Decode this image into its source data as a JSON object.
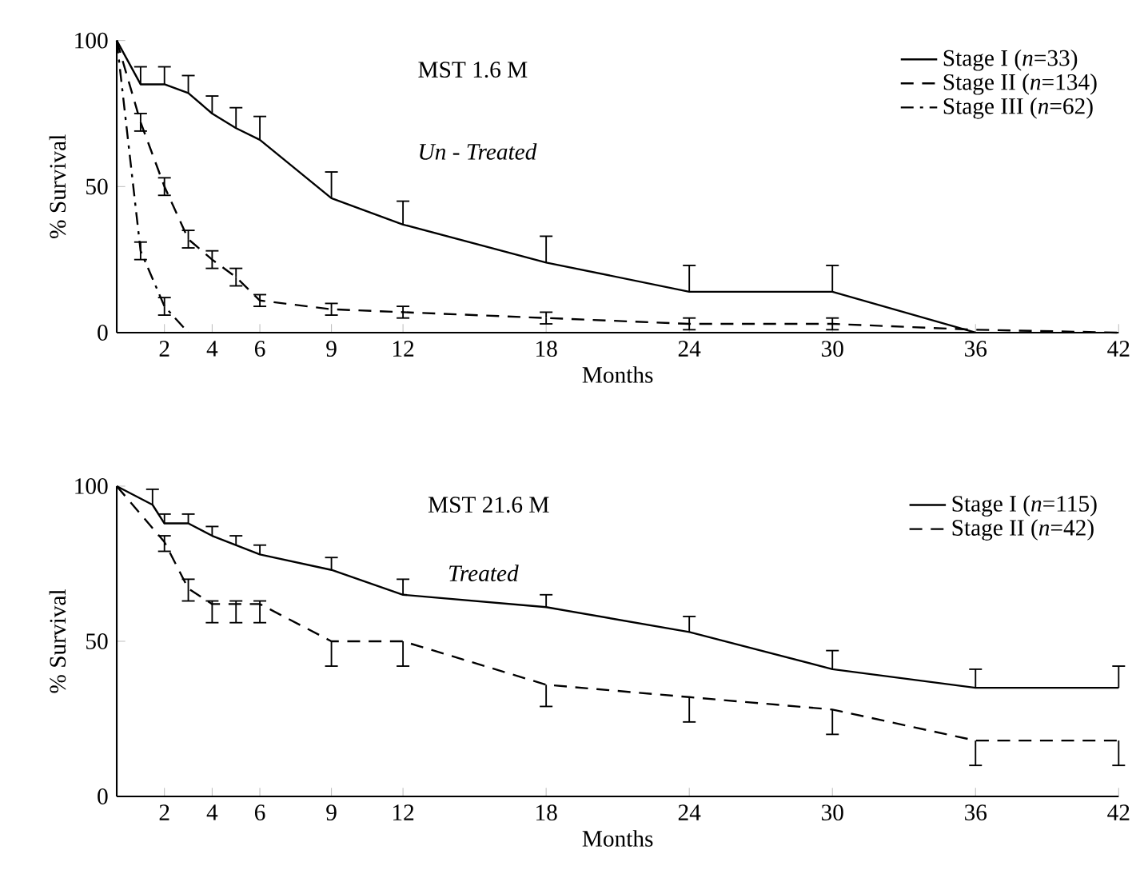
{
  "chart_data": [
    {
      "type": "line",
      "xlabel": "Months",
      "ylabel": "% Survival",
      "xlim": [
        0,
        42
      ],
      "ylim": [
        0,
        100
      ],
      "xticks": [
        2,
        4,
        6,
        9,
        12,
        18,
        24,
        30,
        36,
        42
      ],
      "yticks": [
        0,
        50,
        100
      ],
      "legend": "top right",
      "marker": "none",
      "annotations": [
        "MST 1.6 M",
        "Un - Treated"
      ],
      "series": [
        {
          "name": "Stage I (*n*=33)",
          "color": "#000000",
          "line_style": "solid",
          "x": [
            0,
            1,
            2,
            3,
            4,
            5,
            6,
            9,
            12,
            18,
            24,
            30,
            36
          ],
          "values": [
            100,
            85,
            85,
            82,
            75,
            70,
            66,
            46,
            37,
            24,
            14,
            14,
            0
          ],
          "errors": [
            null,
            [
              85,
              91
            ],
            [
              85,
              91
            ],
            [
              82,
              88
            ],
            [
              75,
              81
            ],
            [
              70,
              77
            ],
            [
              66,
              74
            ],
            [
              46,
              55
            ],
            [
              37,
              45
            ],
            [
              24,
              33
            ],
            [
              14,
              23
            ],
            [
              14,
              23
            ],
            null
          ]
        },
        {
          "name": "Stage II (*n*=134)",
          "color": "#000000",
          "line_style": "dashed",
          "x": [
            0,
            1,
            2,
            3,
            4,
            5,
            6,
            9,
            12,
            18,
            24,
            30,
            36,
            42
          ],
          "values": [
            100,
            72,
            50,
            32,
            25,
            19,
            11,
            8,
            7,
            5,
            3,
            3,
            1,
            0
          ],
          "errors": [
            null,
            3,
            3,
            3,
            3,
            3,
            2,
            2,
            2,
            2,
            2,
            2,
            null,
            null
          ]
        },
        {
          "name": "Stage III (*n*=62)",
          "color": "#000000",
          "line_style": "dashdot",
          "x": [
            0,
            1,
            2,
            3
          ],
          "values": [
            100,
            28,
            9,
            0
          ],
          "errors": [
            null,
            3,
            3,
            null
          ]
        }
      ]
    },
    {
      "type": "line",
      "xlabel": "Months",
      "ylabel": "% Survival",
      "xlim": [
        0,
        42
      ],
      "ylim": [
        0,
        100
      ],
      "xticks": [
        2,
        4,
        6,
        9,
        12,
        18,
        24,
        30,
        36,
        42
      ],
      "yticks": [
        0,
        50,
        100
      ],
      "legend": "top right",
      "marker": "none",
      "annotations": [
        "MST 21.6 M",
        "Treated"
      ],
      "series": [
        {
          "name": "Stage I (*n*=115)",
          "color": "#000000",
          "line_style": "solid",
          "x": [
            0,
            1.5,
            2,
            3,
            4,
            5,
            6,
            9,
            12,
            18,
            24,
            30,
            36,
            42
          ],
          "values": [
            100,
            94,
            88,
            88,
            84,
            81,
            78,
            73,
            65,
            61,
            53,
            41,
            35,
            35
          ],
          "errors": [
            null,
            [
              94,
              99
            ],
            [
              88,
              91
            ],
            [
              88,
              91
            ],
            [
              84,
              87
            ],
            [
              81,
              84
            ],
            [
              78,
              81
            ],
            [
              73,
              77
            ],
            [
              65,
              70
            ],
            [
              61,
              65
            ],
            [
              53,
              58
            ],
            [
              41,
              47
            ],
            [
              35,
              41
            ],
            [
              35,
              42
            ]
          ]
        },
        {
          "name": "Stage II (*n*=42)",
          "color": "#000000",
          "line_style": "dashed",
          "x": [
            0,
            2,
            3,
            4,
            5,
            6,
            9,
            12,
            18,
            24,
            30,
            36,
            42
          ],
          "values": [
            100,
            82,
            67,
            62,
            62,
            62,
            50,
            50,
            36,
            32,
            28,
            18,
            18
          ],
          "errors": [
            null,
            [
              79,
              84
            ],
            [
              63,
              70
            ],
            [
              56,
              63
            ],
            [
              56,
              63
            ],
            [
              56,
              63
            ],
            [
              42,
              50
            ],
            [
              42,
              50
            ],
            [
              29,
              36
            ],
            [
              24,
              32
            ],
            [
              20,
              28
            ],
            [
              10,
              18
            ],
            [
              10,
              18
            ]
          ]
        }
      ]
    }
  ]
}
